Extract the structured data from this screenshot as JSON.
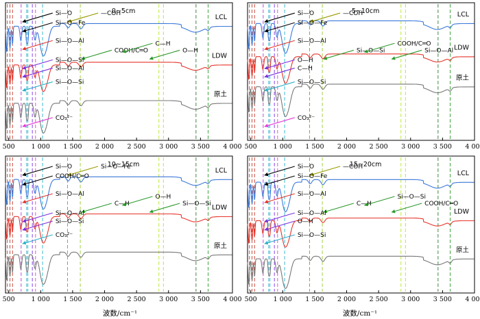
{
  "chart_data": {
    "type": "line",
    "xlabel": "波数/cm⁻¹",
    "xlim": [
      450,
      4000
    ],
    "xticks": [
      500,
      1000,
      1500,
      2000,
      2500,
      3000,
      3500,
      4000
    ],
    "xtick_labels": [
      "500",
      "1 000",
      "1 500",
      "2 000",
      "2 500",
      "3 000",
      "3 500",
      "4 000"
    ],
    "panels": [
      {
        "title": "0~5cm",
        "series": [
          {
            "name": "LCL",
            "color": "#3b78d8"
          },
          {
            "name": "LDW",
            "color": "#e5332a"
          },
          {
            "name": "原土",
            "color": "#777777"
          }
        ],
        "annotations": [
          "Si—O",
          "—COH",
          "Si—O—Fe",
          "Si—O—Al",
          "COOH/C═O",
          "C—H",
          "O—H",
          "Si—O—Si",
          "Si—O—Al",
          "Si—O—Si",
          "CO₃²⁻"
        ]
      },
      {
        "title": "5~10cm",
        "series": [
          {
            "name": "LCL",
            "color": "#3b78d8"
          },
          {
            "name": "LDW",
            "color": "#e5332a"
          },
          {
            "name": "原土",
            "color": "#777777"
          }
        ],
        "annotations": [
          "Si—O",
          "—COH",
          "Si—O—Fe",
          "Si—O—Al",
          "Si—O—Si",
          "COOH/C═O",
          "Si—O—Al",
          "O—H",
          "C—H",
          "Si—O—Si",
          "CO₃²⁻"
        ]
      },
      {
        "title": "10~15cm",
        "series": [
          {
            "name": "LCL",
            "color": "#3b78d8"
          },
          {
            "name": "LDW",
            "color": "#e5332a"
          },
          {
            "name": "原土",
            "color": "#777777"
          }
        ],
        "annotations": [
          "Si—O",
          "Si—O—Fe",
          "COOH/C═O",
          "Si—O—Al",
          "C—H",
          "O—H",
          "Si—O—Si",
          "Si—O—Al",
          "Si—O—Si",
          "CO₃²⁻"
        ]
      },
      {
        "title": "15~20cm",
        "series": [
          {
            "name": "LCL",
            "color": "#3b78d8"
          },
          {
            "name": "LDW",
            "color": "#e5332a"
          },
          {
            "name": "原土",
            "color": "#777777"
          }
        ],
        "annotations": [
          "Si—O",
          "—COH",
          "Si—O—Fe",
          "Si—O—Al",
          "C—H",
          "Si—O—Si",
          "COOH/C═O",
          "Si—O—Al",
          "O—H",
          "Si—O—Si"
        ]
      }
    ]
  },
  "colors": {
    "lcl": "#3b78d8",
    "ldw": "#e5332a",
    "raw": "#777777",
    "arrow_black": "#000000",
    "arrow_red": "#e5332a",
    "arrow_purple": "#7b2fe0",
    "arrow_green": "#2c9a2c",
    "arrow_olive": "#9a9a00",
    "arrow_magenta": "#e83ad6",
    "arrow_cyan": "#2ab0c8"
  }
}
